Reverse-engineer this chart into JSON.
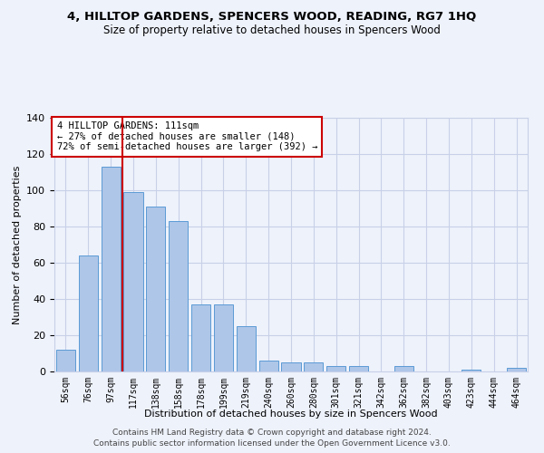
{
  "title": "4, HILLTOP GARDENS, SPENCERS WOOD, READING, RG7 1HQ",
  "subtitle": "Size of property relative to detached houses in Spencers Wood",
  "xlabel": "Distribution of detached houses by size in Spencers Wood",
  "ylabel": "Number of detached properties",
  "bar_values": [
    12,
    64,
    113,
    99,
    91,
    83,
    37,
    37,
    25,
    6,
    5,
    5,
    3,
    3,
    0,
    3,
    0,
    0,
    1,
    0,
    2
  ],
  "bar_labels": [
    "56sqm",
    "76sqm",
    "97sqm",
    "117sqm",
    "138sqm",
    "158sqm",
    "178sqm",
    "199sqm",
    "219sqm",
    "240sqm",
    "260sqm",
    "280sqm",
    "301sqm",
    "321sqm",
    "342sqm",
    "362sqm",
    "382sqm",
    "403sqm",
    "423sqm",
    "444sqm",
    "464sqm"
  ],
  "bar_color": "#aec6e8",
  "bar_edge_color": "#5b9bd5",
  "vline_color": "#cc0000",
  "annotation_title": "4 HILLTOP GARDENS: 111sqm",
  "annotation_line1": "← 27% of detached houses are smaller (148)",
  "annotation_line2": "72% of semi-detached houses are larger (392) →",
  "annotation_box_color": "#ffffff",
  "annotation_box_edge": "#cc0000",
  "ylim": [
    0,
    140
  ],
  "yticks": [
    0,
    20,
    40,
    60,
    80,
    100,
    120,
    140
  ],
  "background_color": "#eef2fb",
  "grid_color": "#c8d0e8",
  "footer_line1": "Contains HM Land Registry data © Crown copyright and database right 2024.",
  "footer_line2": "Contains public sector information licensed under the Open Government Licence v3.0.",
  "title_fontsize": 9.5,
  "subtitle_fontsize": 8.5,
  "xlabel_fontsize": 8,
  "ylabel_fontsize": 8
}
